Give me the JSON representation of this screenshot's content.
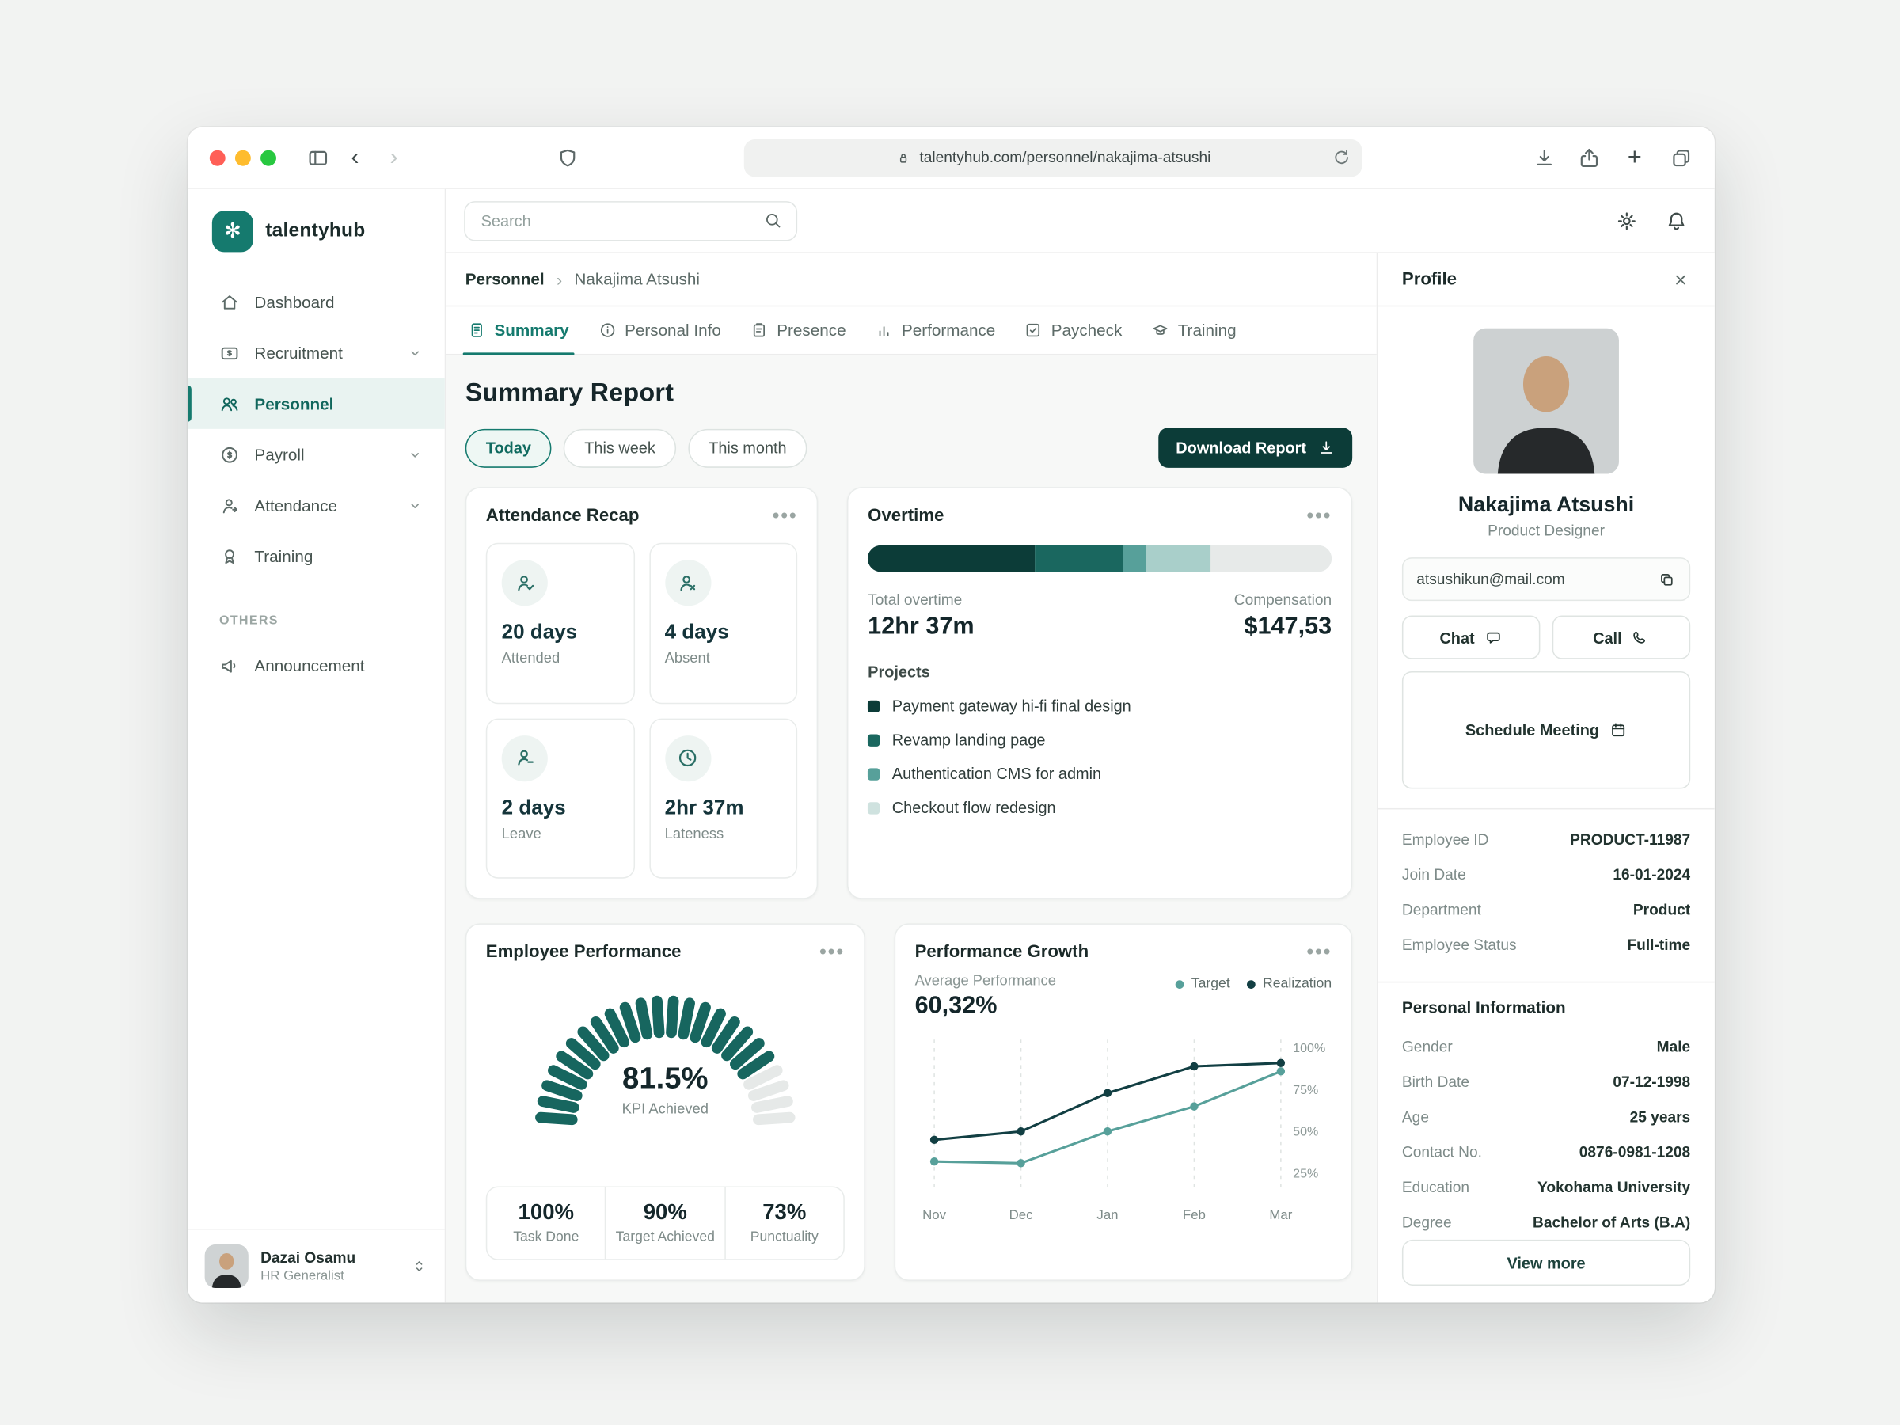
{
  "browser": {
    "url": "talentyhub.com/personnel/nakajima-atsushi"
  },
  "icons": {
    "brand_glyph": "✻",
    "back": "‹",
    "forward": "›",
    "plus": "+",
    "ellipsis": "•••",
    "crumb_sep": "›"
  },
  "sidebar": {
    "brand": "talentyhub",
    "items": [
      {
        "label": "Dashboard"
      },
      {
        "label": "Recruitment",
        "expandable": true
      },
      {
        "label": "Personnel",
        "active": true
      },
      {
        "label": "Payroll",
        "expandable": true
      },
      {
        "label": "Attendance",
        "expandable": true
      },
      {
        "label": "Training"
      }
    ],
    "section_label": "OTHERS",
    "others": [
      {
        "label": "Announcement"
      }
    ],
    "user": {
      "name": "Dazai Osamu",
      "role": "HR Generalist"
    }
  },
  "header": {
    "search_placeholder": "Search"
  },
  "breadcrumb": {
    "root": "Personnel",
    "current": "Nakajima Atsushi"
  },
  "tabs": [
    {
      "label": "Summary"
    },
    {
      "label": "Personal Info"
    },
    {
      "label": "Presence"
    },
    {
      "label": "Performance"
    },
    {
      "label": "Paycheck"
    },
    {
      "label": "Training"
    }
  ],
  "page": {
    "title": "Summary Report",
    "filters": [
      "Today",
      "This week",
      "This month"
    ],
    "download": "Download Report"
  },
  "cards": {
    "attendance": {
      "title": "Attendance Recap",
      "tiles": [
        {
          "value": "20 days",
          "label": "Attended",
          "icon": "person-check-icon"
        },
        {
          "value": "4 days",
          "label": "Absent",
          "icon": "person-x-icon"
        },
        {
          "value": "2 days",
          "label": "Leave",
          "icon": "person-minus-icon"
        },
        {
          "value": "2hr 37m",
          "label": "Lateness",
          "icon": "clock-icon"
        }
      ]
    },
    "overtime": {
      "title": "Overtime",
      "total_label": "Total overtime",
      "total_value": "12hr 37m",
      "comp_label": "Compensation",
      "comp_value": "$147,53",
      "projects_label": "Projects",
      "track_color": "#e7eae9",
      "segments": [
        {
          "color": "#0c3c38",
          "pct": 36
        },
        {
          "color": "#1a675f",
          "pct": 19
        },
        {
          "color": "#57a09a",
          "pct": 5
        },
        {
          "color": "#a9cfca",
          "pct": 14
        }
      ],
      "projects": [
        {
          "name": "Payment gateway hi-fi final design",
          "color": "#0c3c38"
        },
        {
          "name": "Revamp landing page",
          "color": "#1a675f"
        },
        {
          "name": "Authentication CMS for admin",
          "color": "#57a09a"
        },
        {
          "name": "Checkout flow redesign",
          "color": "#cfe2df"
        }
      ]
    },
    "performance": {
      "title": "Employee Performance",
      "gauge": {
        "percent": 81.5,
        "value": "81.5%",
        "label": "KPI Achieved",
        "fill": "#17665f",
        "track": "#e6e9e8",
        "segments": 24
      },
      "stats": [
        {
          "value": "100%",
          "label": "Task Done"
        },
        {
          "value": "90%",
          "label": "Target Achieved"
        },
        {
          "value": "73%",
          "label": "Punctuality"
        }
      ]
    },
    "growth": {
      "title": "Performance Growth",
      "avg_label": "Average Performance",
      "avg_value": "60,32%",
      "chart_data": {
        "type": "line",
        "x": [
          "Nov",
          "Dec",
          "Jan",
          "Feb",
          "Mar"
        ],
        "series": [
          {
            "name": "Target",
            "color": "#57a09a",
            "values": [
              32,
              31,
              50,
              65,
              86
            ]
          },
          {
            "name": "Realization",
            "color": "#123f43",
            "values": [
              45,
              50,
              73,
              89,
              91
            ]
          }
        ],
        "ylim": [
          15,
          105
        ],
        "yticks": [
          100,
          75,
          50,
          25
        ],
        "grid": "vertical-dashed",
        "legend_position": "top-right"
      }
    }
  },
  "profile": {
    "title": "Profile",
    "name": "Nakajima Atsushi",
    "role": "Product Designer",
    "email": "atsushikun@mail.com",
    "actions": {
      "chat": "Chat",
      "call": "Call",
      "schedule": "Schedule Meeting"
    },
    "details": [
      {
        "label": "Employee ID",
        "value": "PRODUCT-11987"
      },
      {
        "label": "Join Date",
        "value": "16-01-2024"
      },
      {
        "label": "Department",
        "value": "Product"
      },
      {
        "label": "Employee Status",
        "value": "Full-time"
      }
    ],
    "personal_title": "Personal Information",
    "personal": [
      {
        "label": "Gender",
        "value": "Male"
      },
      {
        "label": "Birth Date",
        "value": "07-12-1998"
      },
      {
        "label": "Age",
        "value": "25 years"
      },
      {
        "label": "Contact No.",
        "value": "0876-0981-1208"
      },
      {
        "label": "Education",
        "value": "Yokohama University"
      },
      {
        "label": "Degree",
        "value": "Bachelor of Arts (B.A)"
      }
    ],
    "view_more": "View more"
  }
}
